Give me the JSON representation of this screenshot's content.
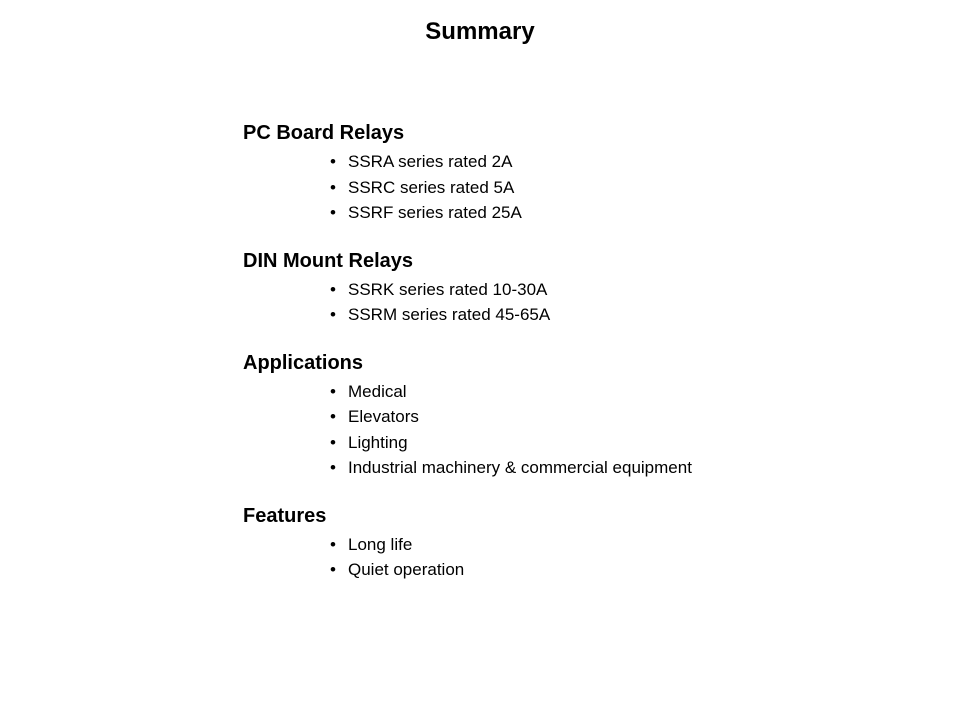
{
  "title": "Summary",
  "sections": [
    {
      "heading": "PC Board Relays",
      "items": [
        "SSRA series rated 2A",
        "SSRC series rated 5A",
        "SSRF series rated 25A"
      ]
    },
    {
      "heading": "DIN Mount Relays",
      "items": [
        "SSRK series rated 10-30A",
        "SSRM series rated 45-65A"
      ]
    },
    {
      "heading": "Applications",
      "items": [
        "Medical",
        "Elevators",
        "Lighting",
        "Industrial machinery & commercial equipment"
      ]
    },
    {
      "heading": "Features",
      "items": [
        "Long life",
        "Quiet operation"
      ]
    }
  ],
  "styling": {
    "background_color": "#ffffff",
    "text_color": "#000000",
    "title_fontsize": 24,
    "heading_fontsize": 20,
    "item_fontsize": 17,
    "font_family": "Verdana"
  }
}
